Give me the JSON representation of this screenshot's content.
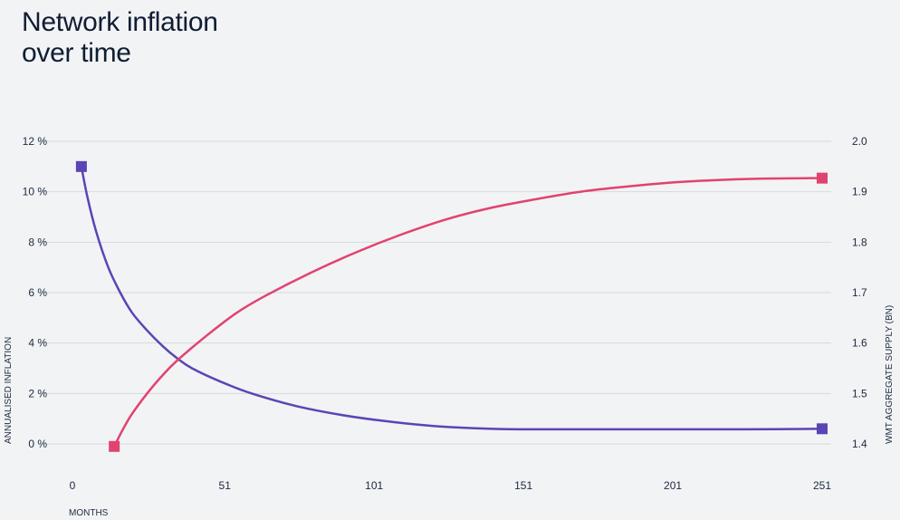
{
  "chart_data": {
    "type": "line",
    "title_lines": [
      "Network inflation",
      "over time"
    ],
    "xlabel": "MONTHS",
    "ylabel_left": "ANNUALISED INFLATION",
    "ylabel_right": "WMT AGGREGATE SUPPLY (BN)",
    "x_ticks": [
      "0",
      "51",
      "101",
      "151",
      "201",
      "251"
    ],
    "y_left_ticks": [
      "0 %",
      "2 %",
      "4 %",
      "6 %",
      "8 %",
      "10 %",
      "12 %"
    ],
    "y_right_ticks": [
      "1.4",
      "1.5",
      "1.6",
      "1.7",
      "1.8",
      "1.9",
      "2.0"
    ],
    "xlim": [
      0,
      251
    ],
    "ylim_left": [
      0,
      12
    ],
    "ylim_right": [
      1.4,
      2.0
    ],
    "grid": true,
    "series": [
      {
        "axis": "left",
        "color": "#5b45b4",
        "x": [
          3,
          5,
          8,
          12,
          16,
          20,
          25,
          30,
          35,
          40,
          50,
          60,
          75,
          90,
          105,
          120,
          135,
          150,
          175,
          200,
          225,
          251
        ],
        "y": [
          11.0,
          9.8,
          8.4,
          7.0,
          6.0,
          5.2,
          4.5,
          3.9,
          3.4,
          3.0,
          2.45,
          2.0,
          1.5,
          1.15,
          0.9,
          0.72,
          0.62,
          0.58,
          0.58,
          0.58,
          0.58,
          0.6
        ]
      },
      {
        "axis": "right",
        "color": "#e0436f",
        "x": [
          14,
          17,
          20,
          25,
          30,
          35,
          45,
          55,
          65,
          80,
          95,
          110,
          125,
          140,
          155,
          170,
          185,
          200,
          215,
          230,
          251
        ],
        "y": [
          1.395,
          1.43,
          1.46,
          1.5,
          1.535,
          1.565,
          1.615,
          1.66,
          1.695,
          1.74,
          1.78,
          1.815,
          1.845,
          1.868,
          1.885,
          1.9,
          1.91,
          1.918,
          1.923,
          1.926,
          1.927
        ]
      }
    ]
  }
}
